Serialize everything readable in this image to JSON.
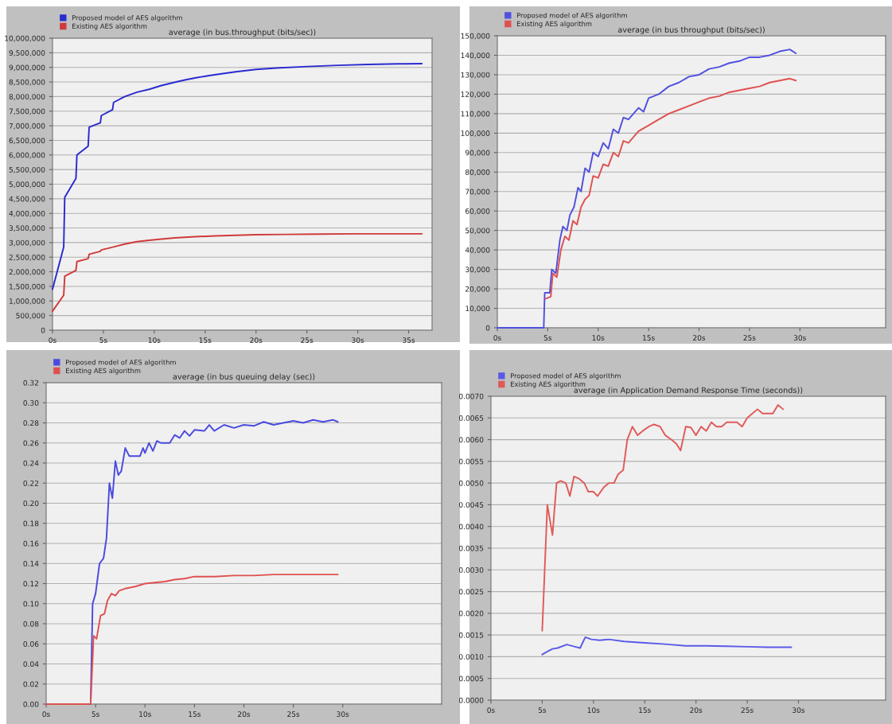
{
  "chart_data": [
    {
      "type": "line",
      "title": "average (in bus.throughput (bits/sec))",
      "legend": "top left",
      "grid": "y",
      "marker": "none",
      "line_style": "solid",
      "xlim": [
        0,
        37.3
      ],
      "xticks": [
        {
          "value": 0,
          "label": "0s"
        },
        {
          "value": 5,
          "label": "5s"
        },
        {
          "value": 10,
          "label": "10s"
        },
        {
          "value": 15,
          "label": "15s"
        },
        {
          "value": 20,
          "label": "20s"
        },
        {
          "value": 25,
          "label": "25s"
        },
        {
          "value": 30,
          "label": "30s"
        },
        {
          "value": 35,
          "label": "35s"
        }
      ],
      "ylim": [
        0,
        10000000
      ],
      "yticks": [
        0,
        {
          "value": 500000,
          "label": "500,000"
        },
        {
          "value": 1000000,
          "label": "1,000,000"
        },
        {
          "value": 1500000,
          "label": "1,500,000"
        },
        {
          "value": 2000000,
          "label": "2,000,000"
        },
        {
          "value": 2500000,
          "label": "2,500,000"
        },
        {
          "value": 3000000,
          "label": "3,000,000"
        },
        {
          "value": 3500000,
          "label": "3,500,000"
        },
        {
          "value": 4000000,
          "label": "4,000,000"
        },
        {
          "value": 4500000,
          "label": "4,500,000"
        },
        {
          "value": 5000000,
          "label": "5,000,000"
        },
        {
          "value": 5500000,
          "label": "5,500,000"
        },
        {
          "value": 6000000,
          "label": "6,000,000"
        },
        {
          "value": 6500000,
          "label": "6,500,000"
        },
        {
          "value": 7000000,
          "label": "7,000,000"
        },
        {
          "value": 7500000,
          "label": "7,500,000"
        },
        {
          "value": 8000000,
          "label": "8,000,000"
        },
        {
          "value": 8500000,
          "label": "8,500,000"
        },
        {
          "value": 9000000,
          "label": "9,000,000"
        },
        {
          "value": 9500000,
          "label": "9,500,000"
        },
        {
          "value": 10000000,
          "label": "10,000,000"
        }
      ],
      "series": [
        {
          "name": "Proposed model of AES algorithm",
          "color": "#2a2ad0",
          "x": [
            0,
            1.1,
            1.2,
            2.3,
            2.4,
            3.5,
            3.6,
            4.7,
            4.8,
            5.9,
            6.0,
            7.1,
            8.3,
            9.5,
            10.7,
            11.9,
            13.0,
            14.2,
            15.4,
            16.6,
            18,
            20,
            22,
            25,
            28,
            31,
            34,
            36.3
          ],
          "values": [
            1400000,
            2850000,
            4550000,
            5200000,
            6000000,
            6300000,
            6950000,
            7100000,
            7350000,
            7550000,
            7800000,
            8000000,
            8150000,
            8250000,
            8380000,
            8480000,
            8570000,
            8650000,
            8720000,
            8780000,
            8850000,
            8930000,
            8980000,
            9030000,
            9070000,
            9100000,
            9120000,
            9130000
          ]
        },
        {
          "name": "Existing AES algorithm",
          "color": "#d03a3a",
          "x": [
            0,
            1.1,
            1.2,
            2.3,
            2.4,
            3.5,
            3.6,
            4.7,
            4.8,
            6,
            7.1,
            8.3,
            9.5,
            10.7,
            12,
            14,
            16,
            18,
            20,
            23,
            26,
            30,
            33,
            36.3
          ],
          "values": [
            650000,
            1200000,
            1850000,
            2050000,
            2350000,
            2450000,
            2600000,
            2700000,
            2750000,
            2850000,
            2950000,
            3030000,
            3080000,
            3120000,
            3160000,
            3200000,
            3230000,
            3250000,
            3270000,
            3280000,
            3290000,
            3300000,
            3300000,
            3300000
          ]
        }
      ]
    },
    {
      "type": "line",
      "title": "average (in bus throughput (bits/sec))",
      "legend": "top left",
      "grid": "y",
      "marker": "none",
      "line_style": "solid",
      "xlim": [
        0,
        38.5
      ],
      "xticks": [
        {
          "value": 0,
          "label": "0s"
        },
        {
          "value": 5,
          "label": "5s"
        },
        {
          "value": 10,
          "label": "10s"
        },
        {
          "value": 15,
          "label": "15s"
        },
        {
          "value": 20,
          "label": "20s"
        },
        {
          "value": 25,
          "label": "25s"
        },
        {
          "value": 30,
          "label": "30s"
        }
      ],
      "ylim": [
        0,
        150000
      ],
      "yticks": [
        0,
        {
          "value": 10000,
          "label": "10,000"
        },
        {
          "value": 20000,
          "label": "20,000"
        },
        {
          "value": 30000,
          "label": "30,000"
        },
        {
          "value": 40000,
          "label": "40,000"
        },
        {
          "value": 50000,
          "label": "50,000"
        },
        {
          "value": 60000,
          "label": "60,000"
        },
        {
          "value": 70000,
          "label": "70,000"
        },
        {
          "value": 80000,
          "label": "80,000"
        },
        {
          "value": 90000,
          "label": "90,000"
        },
        {
          "value": 100000,
          "label": "100,000"
        },
        {
          "value": 110000,
          "label": "110,000"
        },
        {
          "value": 120000,
          "label": "120,000"
        },
        {
          "value": 130000,
          "label": "130,000"
        },
        {
          "value": 140000,
          "label": "140,000"
        },
        {
          "value": 150000,
          "label": "150,000"
        }
      ],
      "series": [
        {
          "name": "Proposed model of AES algorithm",
          "color": "#5050e0",
          "x": [
            0,
            4.6,
            4.7,
            5.2,
            5.4,
            5.8,
            6.2,
            6.5,
            6.9,
            7.2,
            7.6,
            8,
            8.3,
            8.7,
            9.1,
            9.5,
            10,
            10.5,
            11,
            11.5,
            12,
            12.5,
            13,
            14,
            14.5,
            15,
            16,
            17,
            18,
            19,
            20,
            21,
            22,
            23,
            24,
            25,
            26,
            27,
            28,
            29,
            29.6
          ],
          "values": [
            0,
            0,
            18000,
            18000,
            30000,
            28000,
            45000,
            52000,
            50000,
            58000,
            62000,
            72000,
            70000,
            82000,
            80000,
            90000,
            88000,
            95000,
            92000,
            102000,
            100000,
            108000,
            107000,
            113000,
            111000,
            118000,
            120000,
            124000,
            126000,
            129000,
            130000,
            133000,
            134000,
            136000,
            137000,
            139000,
            139000,
            140000,
            142000,
            143000,
            141000
          ]
        },
        {
          "name": "Existing AES algorithm",
          "color": "#e05050",
          "x": [
            4.8,
            5.3,
            5.5,
            5.9,
            6.3,
            6.7,
            7.1,
            7.5,
            7.9,
            8.3,
            8.7,
            9.1,
            9.5,
            10,
            10.5,
            11,
            11.5,
            12,
            12.5,
            13,
            14,
            15,
            16,
            17,
            18,
            19,
            20,
            21,
            22,
            23,
            24,
            25,
            26,
            27,
            28,
            29,
            29.6
          ],
          "values": [
            15000,
            16000,
            28000,
            26000,
            40000,
            47000,
            45000,
            55000,
            53000,
            62000,
            66000,
            68000,
            78000,
            77000,
            84000,
            83000,
            90000,
            88000,
            96000,
            95000,
            101000,
            104000,
            107000,
            110000,
            112000,
            114000,
            116000,
            118000,
            119000,
            121000,
            122000,
            123000,
            124000,
            126000,
            127000,
            128000,
            127000
          ]
        }
      ]
    },
    {
      "type": "line",
      "title": "average (in bus queuing delay (sec))",
      "legend": "top left",
      "grid": "y",
      "marker": "none",
      "line_style": "solid",
      "xlim": [
        0,
        40
      ],
      "xticks": [
        {
          "value": 0,
          "label": "0s"
        },
        {
          "value": 5,
          "label": "5s"
        },
        {
          "value": 10,
          "label": "10s"
        },
        {
          "value": 15,
          "label": "15s"
        },
        {
          "value": 20,
          "label": "20s"
        },
        {
          "value": 25,
          "label": "25s"
        },
        {
          "value": 30,
          "label": "30s"
        }
      ],
      "ylim": [
        0,
        0.32
      ],
      "yticks": [
        {
          "value": 0,
          "label": "0.00"
        },
        {
          "value": 0.02,
          "label": "0.02"
        },
        {
          "value": 0.04,
          "label": "0.04"
        },
        {
          "value": 0.06,
          "label": "0.06"
        },
        {
          "value": 0.08,
          "label": "0.08"
        },
        {
          "value": 0.1,
          "label": "0.10"
        },
        {
          "value": 0.12,
          "label": "0.12"
        },
        {
          "value": 0.14,
          "label": "0.14"
        },
        {
          "value": 0.16,
          "label": "0.16"
        },
        {
          "value": 0.18,
          "label": "0.18"
        },
        {
          "value": 0.2,
          "label": "0.20"
        },
        {
          "value": 0.22,
          "label": "0.22"
        },
        {
          "value": 0.24,
          "label": "0.24"
        },
        {
          "value": 0.26,
          "label": "0.26"
        },
        {
          "value": 0.28,
          "label": "0.28"
        },
        {
          "value": 0.3,
          "label": "0.30"
        },
        {
          "value": 0.32,
          "label": "0.32"
        }
      ],
      "series": [
        {
          "name": "Proposed model of AES algorithm",
          "color": "#4a4ae0",
          "x": [
            0,
            4.5,
            4.7,
            5,
            5.4,
            5.8,
            6.1,
            6.4,
            6.7,
            7,
            7.3,
            7.6,
            8,
            8.4,
            9,
            9.5,
            9.8,
            10,
            10.4,
            10.8,
            11.2,
            11.6,
            12.5,
            13,
            13.5,
            14,
            14.5,
            15,
            16,
            16.5,
            17,
            18,
            19,
            20,
            21,
            22,
            23,
            24,
            25,
            26,
            27,
            28,
            29,
            29.5
          ],
          "values": [
            0,
            0,
            0.1,
            0.11,
            0.14,
            0.145,
            0.165,
            0.22,
            0.205,
            0.242,
            0.228,
            0.232,
            0.255,
            0.247,
            0.247,
            0.247,
            0.255,
            0.25,
            0.26,
            0.252,
            0.262,
            0.26,
            0.26,
            0.268,
            0.265,
            0.272,
            0.267,
            0.273,
            0.272,
            0.278,
            0.272,
            0.278,
            0.275,
            0.278,
            0.277,
            0.281,
            0.278,
            0.28,
            0.282,
            0.28,
            0.283,
            0.281,
            0.283,
            0.281
          ]
        },
        {
          "name": "Existing AES algorithm",
          "color": "#e05050",
          "x": [
            0,
            4.5,
            4.8,
            5.1,
            5.5,
            5.9,
            6.2,
            6.6,
            7,
            7.4,
            8,
            9,
            10,
            11,
            12,
            13,
            14,
            15,
            17,
            19,
            21,
            23,
            25,
            27,
            29.5
          ],
          "values": [
            0,
            0,
            0.068,
            0.065,
            0.088,
            0.09,
            0.103,
            0.11,
            0.108,
            0.113,
            0.115,
            0.117,
            0.12,
            0.121,
            0.122,
            0.124,
            0.125,
            0.127,
            0.127,
            0.128,
            0.128,
            0.129,
            0.129,
            0.129,
            0.129
          ]
        }
      ]
    },
    {
      "type": "line",
      "title": "average (in Application Demand Response Time (seconds))",
      "legend": "top left",
      "grid": "y",
      "marker": "none",
      "line_style": "solid",
      "xlim": [
        0,
        38.5
      ],
      "xticks": [
        {
          "value": 0,
          "label": "0s"
        },
        {
          "value": 5,
          "label": "5s"
        },
        {
          "value": 10,
          "label": "10s"
        },
        {
          "value": 15,
          "label": "15s"
        },
        {
          "value": 20,
          "label": "20s"
        },
        {
          "value": 25,
          "label": "25s"
        },
        {
          "value": 30,
          "label": "30s"
        }
      ],
      "ylim": [
        0,
        0.007
      ],
      "yticks": [
        {
          "value": 0,
          "label": "0.0000"
        },
        {
          "value": 0.0005,
          "label": "0.0005"
        },
        {
          "value": 0.001,
          "label": "0.0010"
        },
        {
          "value": 0.0015,
          "label": "0.0015"
        },
        {
          "value": 0.002,
          "label": "0.0020"
        },
        {
          "value": 0.0025,
          "label": "0.0025"
        },
        {
          "value": 0.003,
          "label": "0.0030"
        },
        {
          "value": 0.0035,
          "label": "0.0035"
        },
        {
          "value": 0.004,
          "label": "0.0040"
        },
        {
          "value": 0.0045,
          "label": "0.0045"
        },
        {
          "value": 0.005,
          "label": "0.0050"
        },
        {
          "value": 0.0055,
          "label": "0.0055"
        },
        {
          "value": 0.006,
          "label": "0.0060"
        },
        {
          "value": 0.0065,
          "label": "0.0065"
        },
        {
          "value": 0.007,
          "label": "0.0070"
        }
      ],
      "series": [
        {
          "name": "Proposed model of AES algorithm",
          "color": "#5a5ae8",
          "x": [
            5,
            5.5,
            6,
            6.5,
            7.4,
            8.2,
            8.7,
            9.2,
            9.8,
            10.6,
            11.5,
            13,
            15,
            17,
            19,
            21,
            23,
            25,
            27,
            29.3
          ],
          "values": [
            0.00105,
            0.00112,
            0.00118,
            0.0012,
            0.00128,
            0.00123,
            0.0012,
            0.00145,
            0.0014,
            0.00138,
            0.0014,
            0.00135,
            0.00132,
            0.00129,
            0.00125,
            0.00125,
            0.00124,
            0.00123,
            0.00122,
            0.00122
          ]
        },
        {
          "name": "Existing AES algorithm",
          "color": "#e05a5a",
          "x": [
            5,
            5.5,
            6,
            6.4,
            6.8,
            7.3,
            7.7,
            8.1,
            8.6,
            9.1,
            9.5,
            10,
            10.4,
            11,
            11.5,
            12,
            12.4,
            12.9,
            13.3,
            13.8,
            14.3,
            14.8,
            15.4,
            15.9,
            16.5,
            17,
            17.6,
            18.1,
            18.5,
            19,
            19.5,
            20,
            20.5,
            21,
            21.5,
            22,
            22.5,
            23,
            23.5,
            24,
            24.5,
            25,
            25.5,
            26,
            26.5,
            27,
            27.5,
            28,
            28.5
          ],
          "values": [
            0.0016,
            0.0045,
            0.0038,
            0.005,
            0.00505,
            0.005,
            0.0047,
            0.00515,
            0.0051,
            0.005,
            0.0048,
            0.0048,
            0.0047,
            0.0049,
            0.005,
            0.005,
            0.0052,
            0.0053,
            0.006,
            0.0063,
            0.0061,
            0.0062,
            0.0063,
            0.00635,
            0.0063,
            0.0061,
            0.006,
            0.0059,
            0.00575,
            0.0063,
            0.00628,
            0.0061,
            0.0063,
            0.0062,
            0.0064,
            0.0063,
            0.0063,
            0.0064,
            0.0064,
            0.0064,
            0.0063,
            0.0065,
            0.0066,
            0.0067,
            0.0066,
            0.0066,
            0.0066,
            0.0068,
            0.0067
          ]
        }
      ]
    }
  ]
}
